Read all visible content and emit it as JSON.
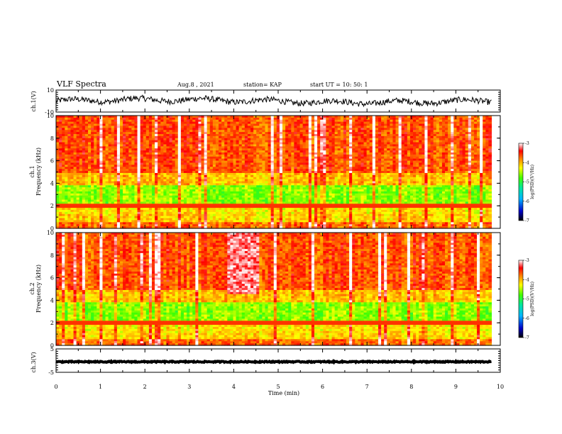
{
  "header": {
    "title": "VLF Spectra",
    "date": "Aug.8 , 2021",
    "station": "station= KAP",
    "start_ut": "start UT = 10: 50: 1"
  },
  "chart_data": [
    {
      "type": "line",
      "name": "ch1-waveform",
      "ylabel": "ch.1(V)",
      "xlim": [
        0,
        10
      ],
      "xlim_data": [
        0,
        9.8
      ],
      "ylim": [
        -10,
        10
      ],
      "y_ticks": [
        "10",
        "-10"
      ]
    },
    {
      "type": "heatmap",
      "name": "ch1-spectrogram",
      "ylabel": "ch.1\nFrequency (kHz)",
      "xlim": [
        0,
        10
      ],
      "xlim_data": [
        0,
        9.8
      ],
      "ylim": [
        0,
        10
      ],
      "y_ticks": [
        "0",
        "2",
        "4",
        "6",
        "8",
        "10"
      ],
      "colorbar": {
        "label": "log(PSD)(V²/Hz)",
        "range": [
          -7,
          -3
        ],
        "ticks": [
          "-3",
          "-4",
          "-5",
          "-6",
          "-7"
        ]
      }
    },
    {
      "type": "heatmap",
      "name": "ch2-spectrogram",
      "ylabel": "ch.2\nFrequency (kHz)",
      "xlim": [
        0,
        10
      ],
      "xlim_data": [
        0,
        9.8
      ],
      "ylim": [
        0,
        10
      ],
      "y_ticks": [
        "0",
        "2",
        "4",
        "6",
        "8",
        "10"
      ],
      "colorbar": {
        "label": "log(PSD)(V²/Hz)",
        "range": [
          -7,
          -3
        ],
        "ticks": [
          "-3",
          "-4",
          "-5",
          "-6",
          "-7"
        ]
      }
    },
    {
      "type": "line",
      "name": "ch3-waveform",
      "ylabel": "ch.3(V)",
      "xlim": [
        0,
        10
      ],
      "xlim_data": [
        0,
        9.8
      ],
      "ylim": [
        -5,
        5
      ],
      "y_ticks": [
        "5",
        "-5"
      ]
    }
  ],
  "x_axis": {
    "label": "Time (min)",
    "ticks": [
      "0",
      "1",
      "2",
      "3",
      "4",
      "5",
      "6",
      "7",
      "8",
      "9",
      "10"
    ]
  }
}
